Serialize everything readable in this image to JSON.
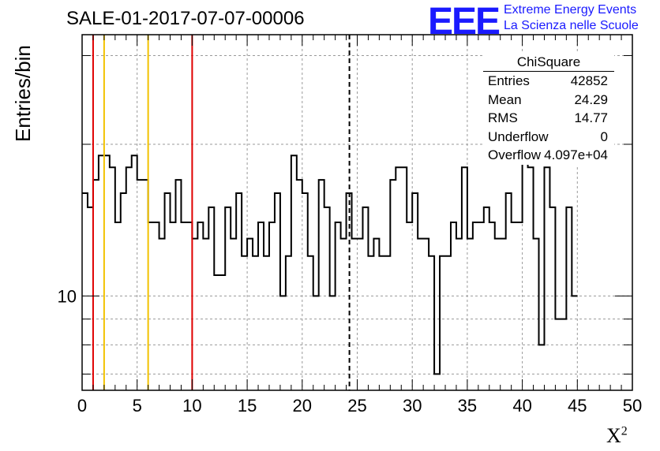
{
  "header": {
    "title": "SALE-01-2017-07-07-00006",
    "logo_text": "EEE",
    "logo_line1": "Extreme Energy Events",
    "logo_line2": "La Scienza nelle Scuole"
  },
  "stats_box": {
    "title": "ChiSquare",
    "rows": [
      {
        "label": "Entries",
        "value": "42852"
      },
      {
        "label": "Mean",
        "value": "24.29"
      },
      {
        "label": "RMS",
        "value": "14.77"
      },
      {
        "label": "Underflow",
        "value": "0"
      },
      {
        "label": "Overflow",
        "value": "4.097e+04"
      }
    ]
  },
  "chart_data": {
    "type": "histogram",
    "xlabel": "X",
    "xlabel_superscript": "2",
    "ylabel": "Entries/bin",
    "xlim": [
      0,
      50
    ],
    "ylim": [
      6.5,
      33
    ],
    "y_scale": "log",
    "x_ticks": [
      "0",
      "5",
      "10",
      "15",
      "20",
      "25",
      "30",
      "35",
      "40",
      "45",
      "50"
    ],
    "y_tick_labels": [
      {
        "value": 10,
        "label": "10"
      }
    ],
    "grid": true,
    "bin_width": 0.5,
    "bin_start": 0,
    "counts": [
      16,
      15,
      17,
      19,
      19,
      18,
      14,
      16,
      18,
      19,
      17,
      17,
      14,
      14,
      13,
      16,
      14,
      17,
      14,
      14,
      13,
      14,
      13,
      15,
      11,
      11,
      15,
      13,
      16,
      12,
      13,
      12,
      14,
      12,
      14,
      16,
      10,
      12,
      19,
      17,
      16,
      12,
      10,
      17,
      15,
      10,
      14,
      13,
      16,
      13,
      13,
      15,
      12,
      13,
      12,
      12,
      17,
      18,
      18,
      14,
      16,
      13,
      13,
      12,
      7,
      12,
      12,
      14,
      13,
      18,
      13,
      14,
      14,
      15,
      14,
      13,
      13,
      16,
      14,
      14,
      19,
      18,
      13,
      8,
      18,
      15,
      9,
      9,
      15,
      10
    ],
    "vertical_lines": [
      {
        "x": 1,
        "color": "#e00000",
        "style": "solid"
      },
      {
        "x": 2,
        "color": "#f2c200",
        "style": "solid"
      },
      {
        "x": 6,
        "color": "#f2c200",
        "style": "solid"
      },
      {
        "x": 10,
        "color": "#e00000",
        "style": "solid"
      },
      {
        "x": 24.29,
        "color": "#000000",
        "style": "dashed"
      }
    ],
    "colors": {
      "line": "#000000",
      "grid": "#9a9a9a"
    }
  }
}
